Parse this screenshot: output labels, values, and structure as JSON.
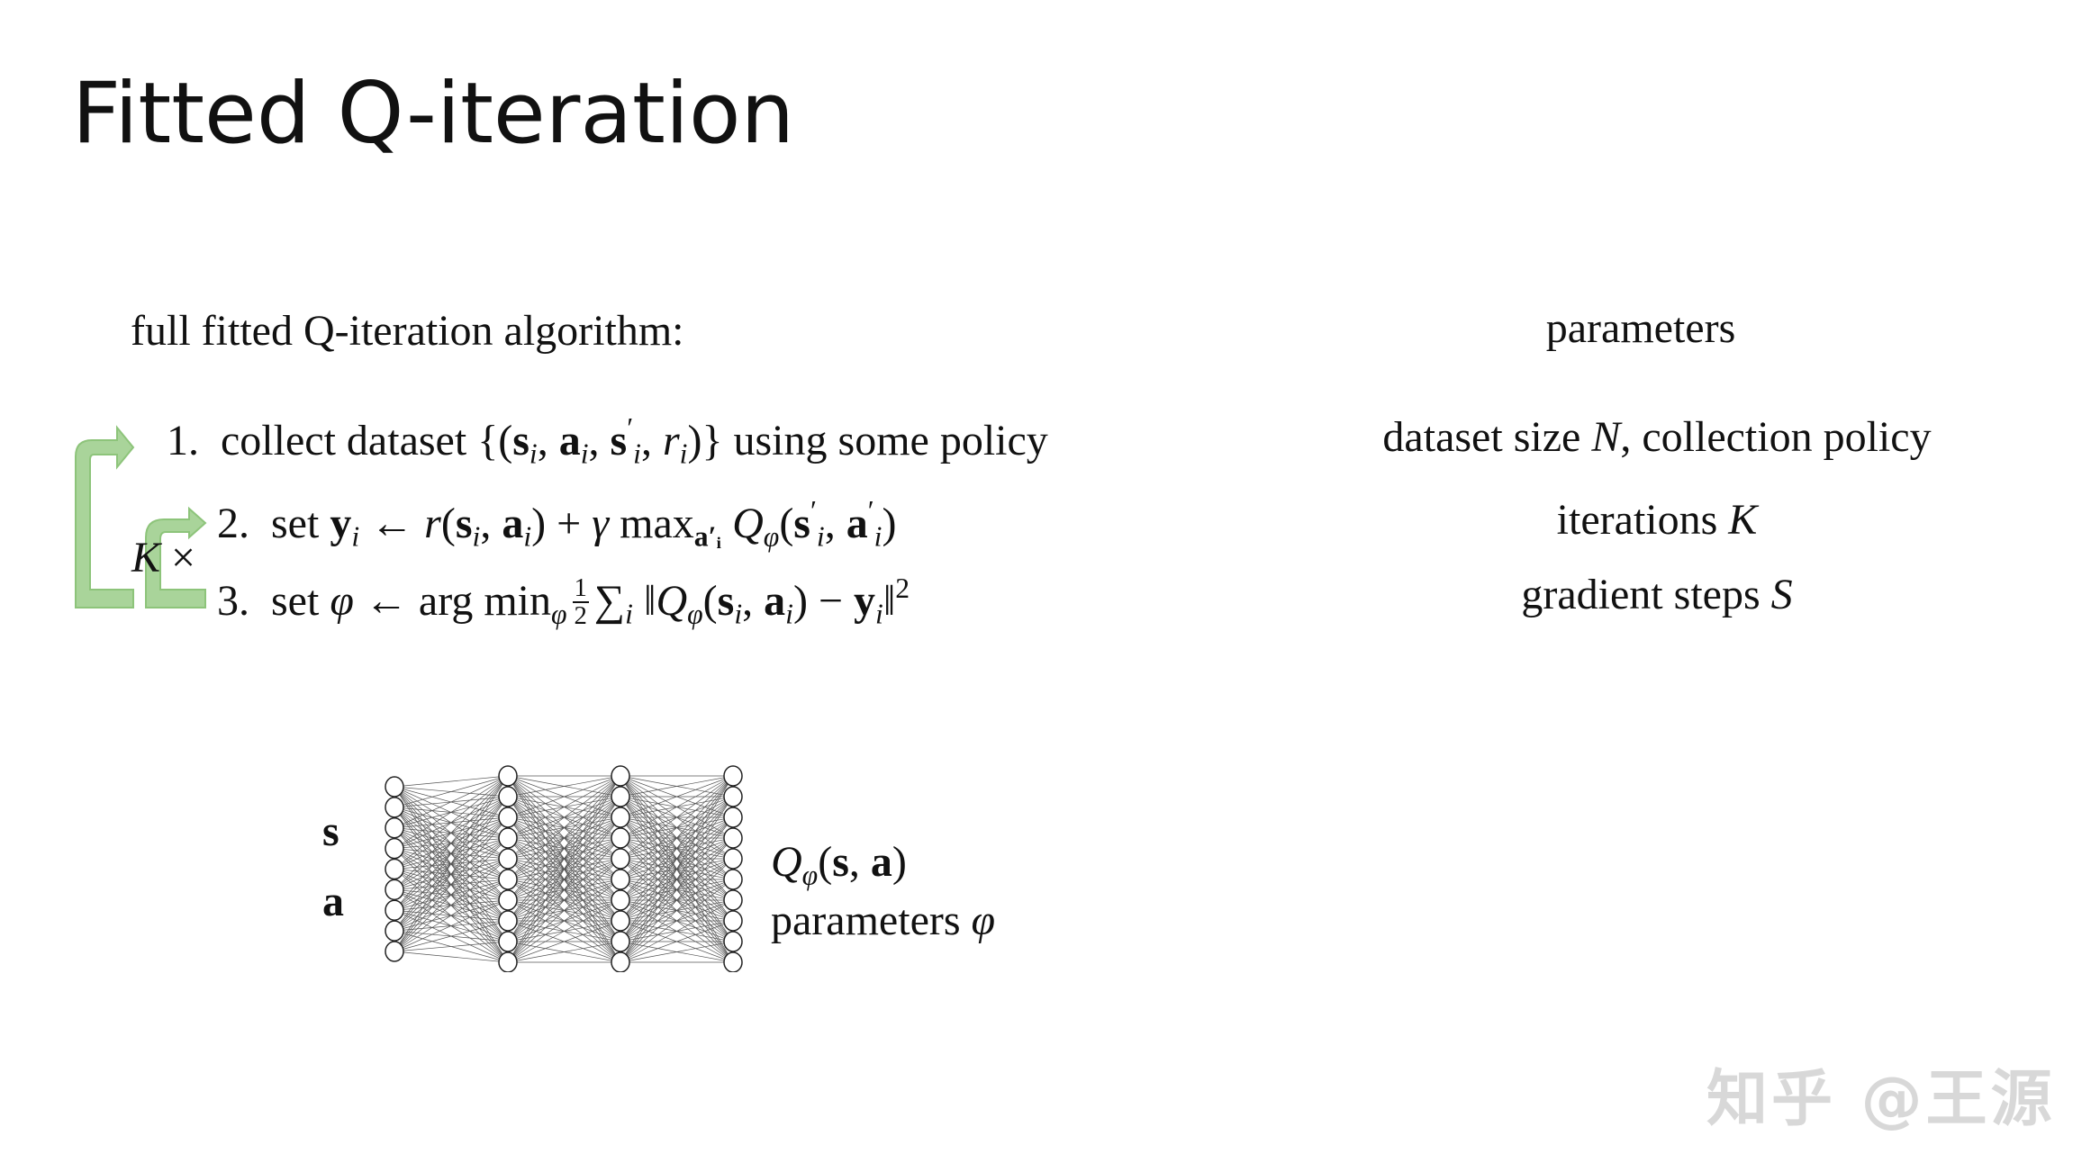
{
  "slide": {
    "title": "Fitted Q-iteration",
    "algorithm_heading": "full fitted Q-iteration algorithm:",
    "parameters_heading": "parameters",
    "loop_label": [
      {
        "t": "K",
        "s": "i"
      },
      {
        "t": " ×",
        "s": ""
      }
    ],
    "steps": [
      [
        {
          "t": "1.  collect dataset {(",
          "s": ""
        },
        {
          "t": "s",
          "s": "b"
        },
        {
          "t": "i",
          "s": "sub"
        },
        {
          "t": ", ",
          "s": ""
        },
        {
          "t": "a",
          "s": "b"
        },
        {
          "t": "i",
          "s": "sub"
        },
        {
          "t": ", ",
          "s": ""
        },
        {
          "t": "s",
          "s": "b"
        },
        {
          "t": "′",
          "s": "sup"
        },
        {
          "t": "i",
          "s": "sub"
        },
        {
          "t": ", ",
          "s": ""
        },
        {
          "t": "r",
          "s": "i"
        },
        {
          "t": "i",
          "s": "sub"
        },
        {
          "t": ")} using some policy",
          "s": ""
        }
      ],
      [
        {
          "t": "2.  set ",
          "s": ""
        },
        {
          "t": "y",
          "s": "b"
        },
        {
          "t": "i",
          "s": "sub"
        },
        {
          "t": " ← ",
          "s": ""
        },
        {
          "t": "r",
          "s": "i"
        },
        {
          "t": "(",
          "s": ""
        },
        {
          "t": "s",
          "s": "b"
        },
        {
          "t": "i",
          "s": "sub"
        },
        {
          "t": ", ",
          "s": ""
        },
        {
          "t": "a",
          "s": "b"
        },
        {
          "t": "i",
          "s": "sub"
        },
        {
          "t": ") + ",
          "s": ""
        },
        {
          "t": "γ",
          "s": "i"
        },
        {
          "t": " max",
          "s": ""
        },
        {
          "t": "a′ᵢ",
          "s": "subb"
        },
        {
          "t": " Q",
          "s": "i"
        },
        {
          "t": "φ",
          "s": "sub"
        },
        {
          "t": "(",
          "s": ""
        },
        {
          "t": "s",
          "s": "b"
        },
        {
          "t": "′",
          "s": "sup"
        },
        {
          "t": "i",
          "s": "sub"
        },
        {
          "t": ", ",
          "s": ""
        },
        {
          "t": "a",
          "s": "b"
        },
        {
          "t": "′",
          "s": "sup"
        },
        {
          "t": "i",
          "s": "sub"
        },
        {
          "t": ")",
          "s": ""
        }
      ],
      [
        {
          "t": "3.  set ",
          "s": ""
        },
        {
          "t": "φ",
          "s": "i"
        },
        {
          "t": " ← arg min",
          "s": ""
        },
        {
          "t": "φ",
          "s": "sub"
        },
        {
          "t": "1|2",
          "s": "frac"
        },
        {
          "t": "∑",
          "s": ""
        },
        {
          "t": "i",
          "s": "sub"
        },
        {
          "t": " ‖",
          "s": ""
        },
        {
          "t": "Q",
          "s": "i"
        },
        {
          "t": "φ",
          "s": "sub"
        },
        {
          "t": "(",
          "s": ""
        },
        {
          "t": "s",
          "s": "b"
        },
        {
          "t": "i",
          "s": "sub"
        },
        {
          "t": ", ",
          "s": ""
        },
        {
          "t": "a",
          "s": "b"
        },
        {
          "t": "i",
          "s": "sub"
        },
        {
          "t": ") − ",
          "s": ""
        },
        {
          "t": "y",
          "s": "b"
        },
        {
          "t": "i",
          "s": "sub"
        },
        {
          "t": "‖",
          "s": ""
        },
        {
          "t": "2",
          "s": "sup"
        }
      ]
    ],
    "parameters": [
      [
        {
          "t": "dataset size ",
          "s": ""
        },
        {
          "t": "N",
          "s": "i"
        },
        {
          "t": ", collection policy",
          "s": ""
        }
      ],
      [
        {
          "t": "iterations ",
          "s": ""
        },
        {
          "t": "K",
          "s": "i"
        }
      ],
      [
        {
          "t": "gradient steps ",
          "s": ""
        },
        {
          "t": "S",
          "s": "i"
        }
      ]
    ],
    "network": {
      "input_s": "s",
      "input_a": "a",
      "output": [
        {
          "t": "Q",
          "s": "i"
        },
        {
          "t": "φ",
          "s": "sub"
        },
        {
          "t": "(",
          "s": ""
        },
        {
          "t": "s",
          "s": "b"
        },
        {
          "t": ", ",
          "s": ""
        },
        {
          "t": "a",
          "s": "b"
        },
        {
          "t": ")",
          "s": ""
        }
      ],
      "params": [
        {
          "t": "parameters ",
          "s": ""
        },
        {
          "t": "φ",
          "s": "i"
        }
      ],
      "layer_sizes": [
        9,
        10,
        10,
        10
      ]
    },
    "arrow_color": "#8dc47a",
    "watermark": "知乎 @王源"
  }
}
